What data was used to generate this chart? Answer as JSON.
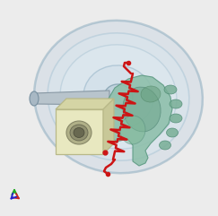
{
  "background_color": "#ececec",
  "wheel_outer_fc": "#cdd9e4",
  "wheel_outer_ec": "#8faec0",
  "wheel_mid_fc": "#d8e8f0",
  "wheel_mid_ec": "#9bbccf",
  "wheel_inner_fc": "#e2eef5",
  "wheel_inner_ec": "#8aafc4",
  "hub_fc": "#b8ccd8",
  "hub_ec": "#7898a8",
  "gear_fc": "#8dbfaa",
  "gear_ec": "#5a9880",
  "gear_dark_fc": "#6fa88e",
  "box_front_fc": "#e8e8c0",
  "box_top_fc": "#d5d5a5",
  "box_right_fc": "#c8c898",
  "box_ec": "#b8b888",
  "shaft_fc": "#b8c4cc",
  "shaft_ec": "#8898a4",
  "spring_color": "#cc1515",
  "axis_y_color": "#22aa22",
  "axis_x_color": "#cc2222",
  "axis_z_color": "#2222cc",
  "figsize": [
    2.43,
    2.41
  ],
  "dpi": 100
}
